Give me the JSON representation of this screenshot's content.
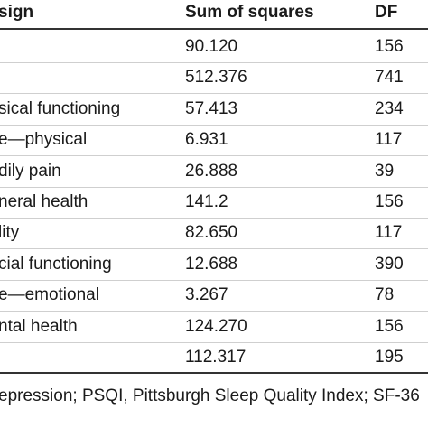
{
  "table": {
    "header": [
      "sign",
      "Sum of squares",
      "DF"
    ],
    "rows": [
      {
        "ss": "90.120",
        "df": "156"
      },
      {
        "ss": "512.376",
        "df": "741"
      },
      {
        "label": "sical functioning",
        "ss": "57.413",
        "df": "234"
      },
      {
        "label": "e—physical",
        "ss": "6.931",
        "df": "117"
      },
      {
        "label": "dily pain",
        "ss": "26.888",
        "df": "39"
      },
      {
        "label": "neral health",
        "ss": "141.2",
        "df": "156"
      },
      {
        "label": "lity",
        "ss": "82.650",
        "df": "117"
      },
      {
        "label": "cial functioning",
        "ss": "12.688",
        "df": "390"
      },
      {
        "label": "e—emotional",
        "ss": "3.267",
        "df": "78"
      },
      {
        "label": "ntal health",
        "ss": "124.270",
        "df": "156"
      },
      {
        "ss": "112.317",
        "df": "195"
      }
    ],
    "footnote": "epression; PSQI, Pittsburgh Sleep Quality Index; SF-36"
  }
}
